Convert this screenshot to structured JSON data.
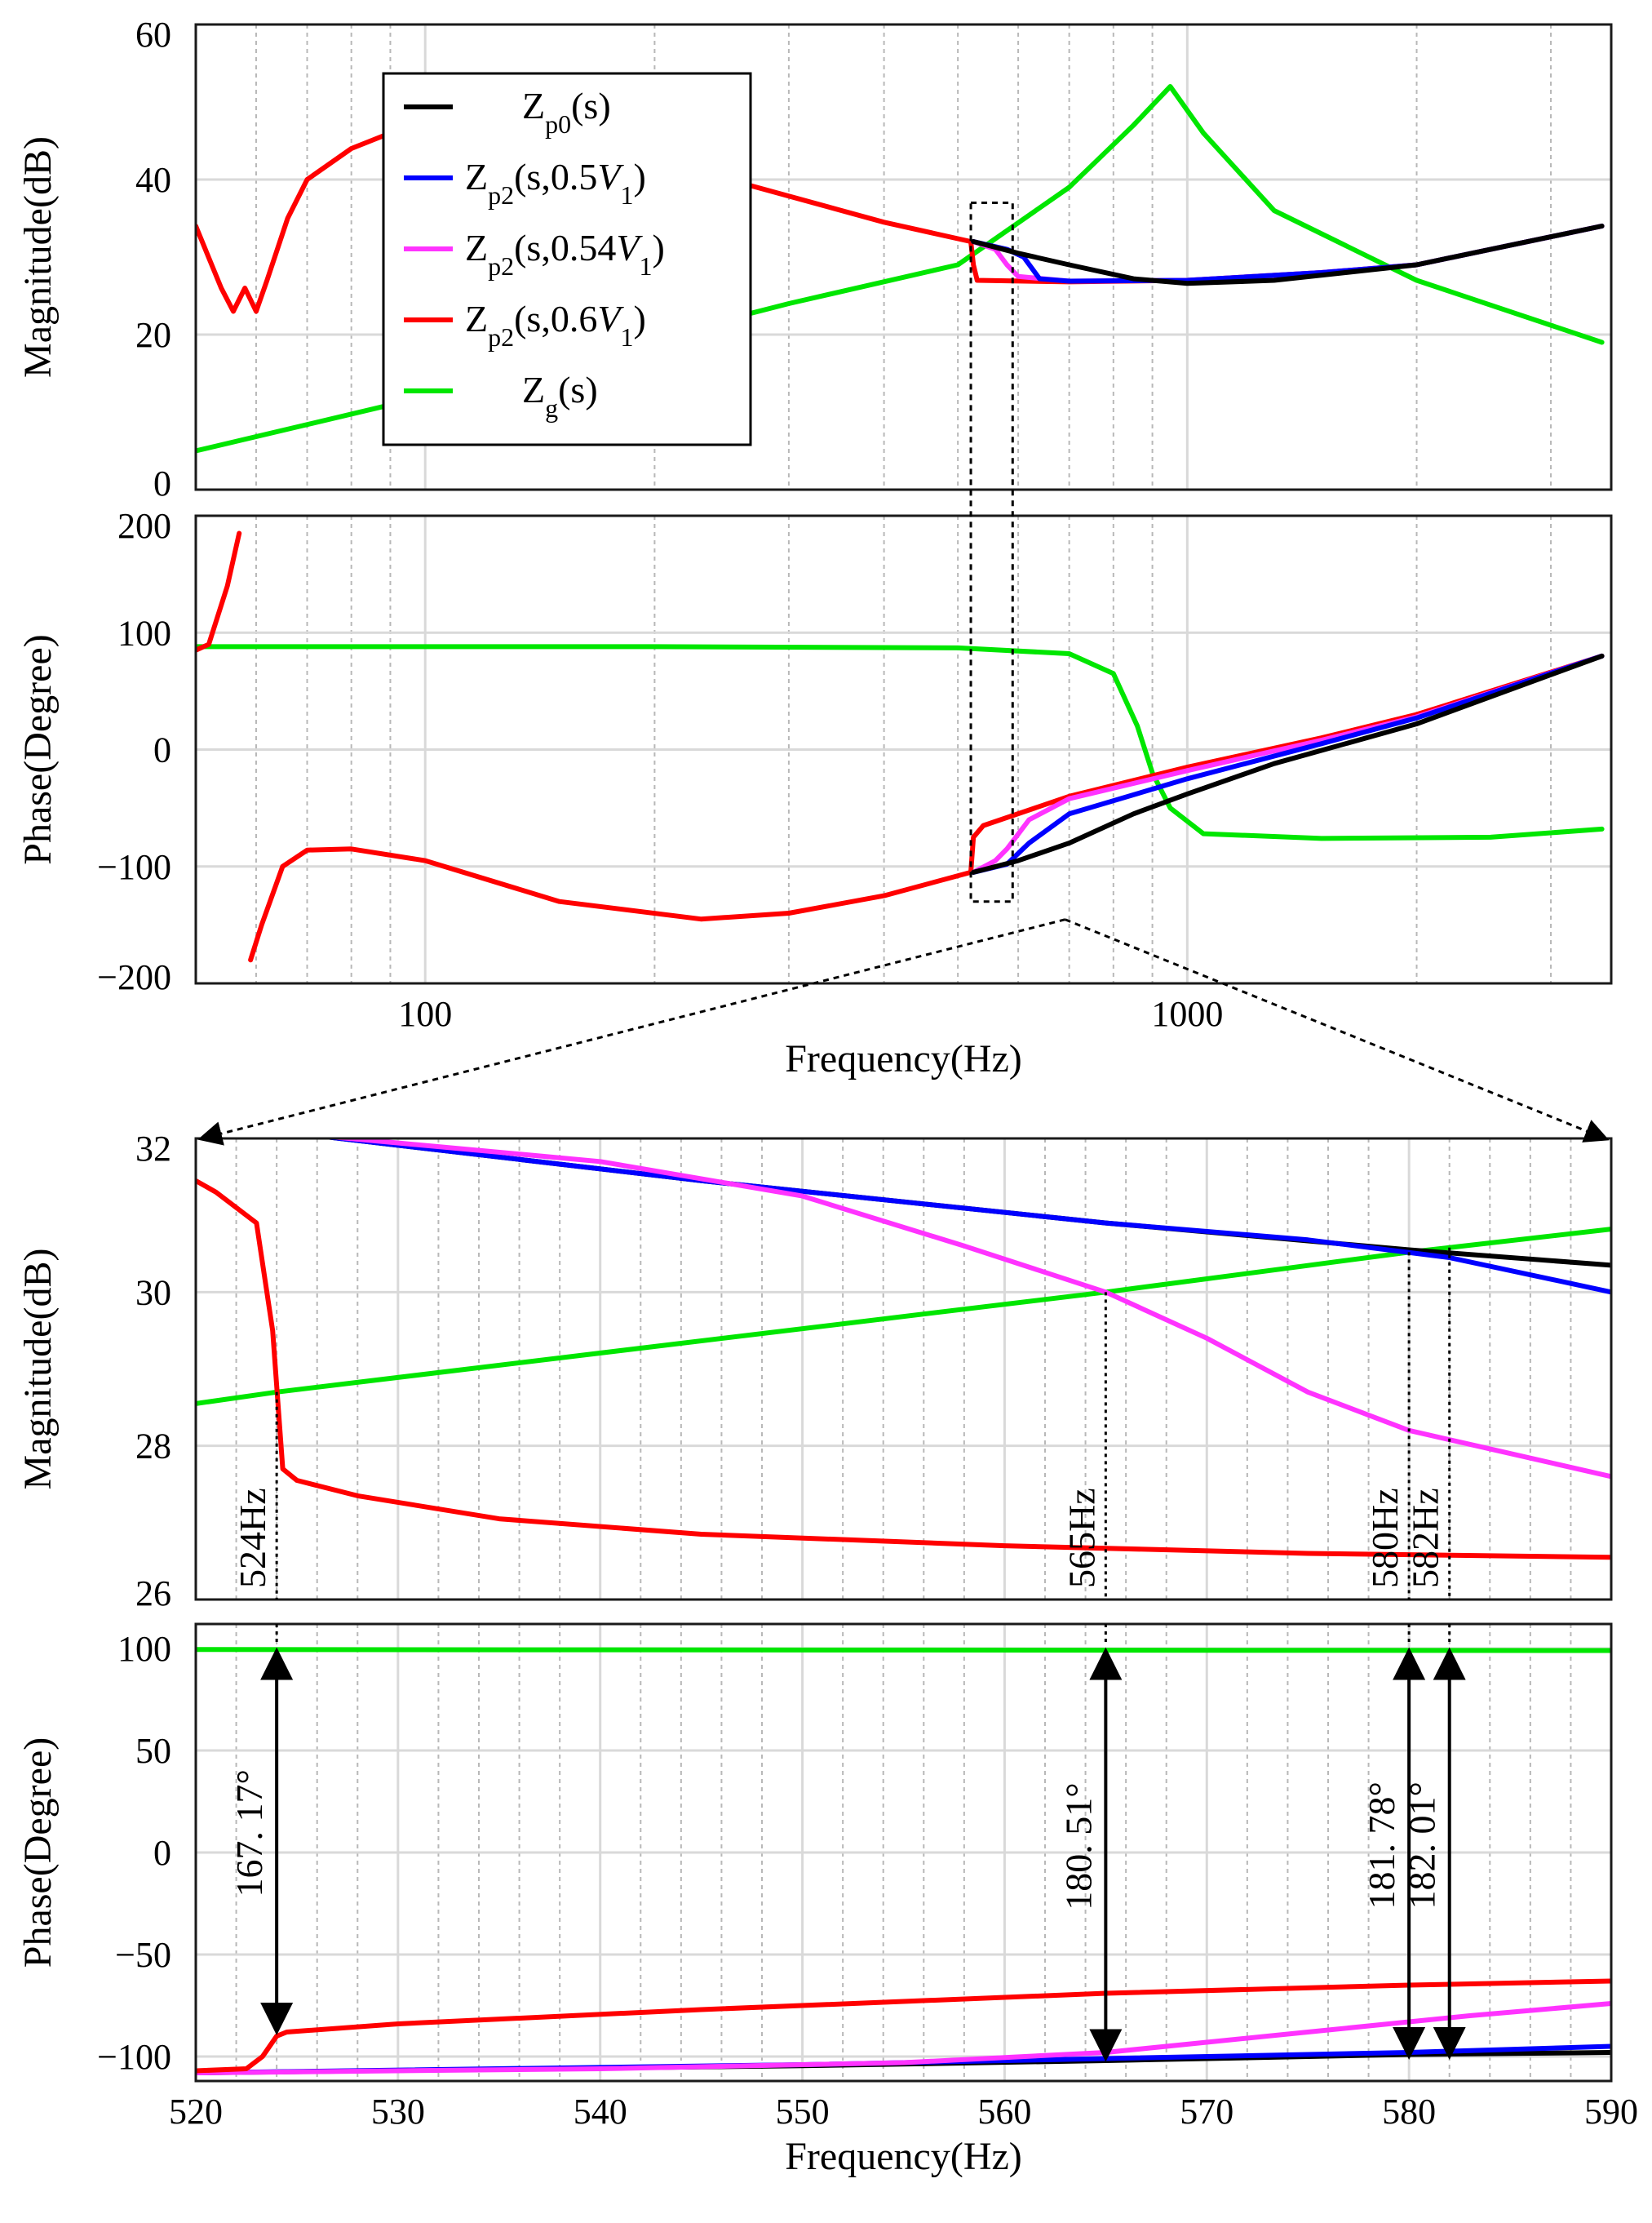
{
  "chart_data": [
    {
      "type": "line",
      "panel": "top-magnitude",
      "xscale": "log",
      "xlim": [
        50,
        3600
      ],
      "ylim": [
        0,
        60
      ],
      "yticks": [
        "0",
        "20",
        "40",
        "60"
      ],
      "ylabel": "Magnitude(dB)",
      "legend": {
        "position": "top-left",
        "entries": [
          {
            "main": "Z",
            "sub": "p0",
            "rest": "(s)",
            "color": "#000000"
          },
          {
            "main": "Z",
            "sub": "p2",
            "rest": "(s,0.5",
            "var": "V",
            "varsub": "1",
            "close": ")",
            "color": "#0000ff"
          },
          {
            "main": "Z",
            "sub": "p2",
            "rest": "(s,0.54",
            "var": "V",
            "varsub": "1",
            "close": ")",
            "color": "#ff33ff"
          },
          {
            "main": "Z",
            "sub": "p2",
            "rest": "(s,0.6",
            "var": "V",
            "varsub": "1",
            "close": ")",
            "color": "#ff0000"
          },
          {
            "main": "Z",
            "sub": "g",
            "rest": "(s)",
            "color": "#00e600"
          }
        ]
      },
      "series": [
        {
          "name": "Zg",
          "color": "#00e600",
          "points": [
            [
              50,
              5
            ],
            [
              100,
              12
            ],
            [
              300,
              24
            ],
            [
              500,
              29
            ],
            [
              700,
              39
            ],
            [
              850,
              47
            ],
            [
              950,
              52
            ],
            [
              1050,
              46
            ],
            [
              1300,
              36
            ],
            [
              2000,
              27
            ],
            [
              3500,
              19
            ]
          ]
        },
        {
          "name": "Zp2_0.6",
          "color": "#ff0000",
          "points": [
            [
              50,
              34
            ],
            [
              54,
              26
            ],
            [
              56,
              23
            ],
            [
              58,
              26
            ],
            [
              60,
              23
            ],
            [
              62,
              27
            ],
            [
              66,
              35
            ],
            [
              70,
              40
            ],
            [
              80,
              44
            ],
            [
              90,
              46
            ],
            [
              100,
              46
            ],
            [
              150,
              44
            ],
            [
              250,
              40
            ],
            [
              400,
              34.5
            ],
            [
              520,
              32
            ],
            [
              524,
              29
            ],
            [
              530,
              27
            ],
            [
              700,
              26.8
            ],
            [
              1000,
              27
            ],
            [
              1500,
              28
            ],
            [
              2000,
              29
            ],
            [
              3500,
              34
            ]
          ]
        },
        {
          "name": "Zp2_0.54",
          "color": "#ff33ff",
          "points": [
            [
              524,
              32
            ],
            [
              560,
              31
            ],
            [
              580,
              29
            ],
            [
              600,
              27.5
            ],
            [
              700,
              26.9
            ],
            [
              1000,
              27
            ],
            [
              1500,
              28
            ],
            [
              2000,
              29
            ],
            [
              3500,
              34
            ]
          ]
        },
        {
          "name": "Zp2_0.5",
          "color": "#0000ff",
          "points": [
            [
              524,
              32
            ],
            [
              580,
              31
            ],
            [
              610,
              30
            ],
            [
              640,
              27.2
            ],
            [
              700,
              26.9
            ],
            [
              1000,
              27
            ],
            [
              1500,
              28
            ],
            [
              2000,
              29
            ],
            [
              3500,
              34
            ]
          ]
        },
        {
          "name": "Zp0",
          "color": "#000000",
          "points": [
            [
              524,
              32
            ],
            [
              600,
              30.5
            ],
            [
              700,
              29
            ],
            [
              850,
              27.2
            ],
            [
              1000,
              26.6
            ],
            [
              1300,
              27
            ],
            [
              2000,
              29
            ],
            [
              3500,
              34
            ]
          ]
        }
      ]
    },
    {
      "type": "line",
      "panel": "top-phase",
      "xscale": "log",
      "xlim": [
        50,
        3600
      ],
      "ylim": [
        -200,
        200
      ],
      "yticks": [
        "−200",
        "−100",
        "0",
        "100",
        "200"
      ],
      "xticks": [
        "100",
        "1000"
      ],
      "xtick_values": [
        100,
        1000
      ],
      "ylabel": "Phase(Degree)",
      "xlabel": "Frequency(Hz)",
      "series": [
        {
          "name": "Zg",
          "color": "#00e600",
          "points": [
            [
              50,
              88
            ],
            [
              200,
              88
            ],
            [
              500,
              87
            ],
            [
              700,
              82
            ],
            [
              800,
              65
            ],
            [
              860,
              20
            ],
            [
              900,
              -20
            ],
            [
              950,
              -50
            ],
            [
              1050,
              -72
            ],
            [
              1500,
              -76
            ],
            [
              2500,
              -75
            ],
            [
              3500,
              -68
            ]
          ]
        },
        {
          "name": "Zp2_0.6_low",
          "color": "#ff0000",
          "points": [
            [
              50,
              85
            ],
            [
              52,
              90
            ],
            [
              55,
              140
            ],
            [
              57,
              185
            ]
          ]
        },
        {
          "name": "Zp2_0.6",
          "color": "#ff0000",
          "points": [
            [
              59,
              -180
            ],
            [
              61,
              -150
            ],
            [
              65,
              -100
            ],
            [
              70,
              -86
            ],
            [
              80,
              -85
            ],
            [
              100,
              -95
            ],
            [
              150,
              -130
            ],
            [
              230,
              -145
            ],
            [
              300,
              -140
            ],
            [
              400,
              -125
            ],
            [
              520,
              -105
            ],
            [
              524,
              -75
            ],
            [
              540,
              -65
            ],
            [
              700,
              -40
            ],
            [
              1000,
              -15
            ],
            [
              1500,
              10
            ],
            [
              2000,
              30
            ],
            [
              3500,
              80
            ]
          ]
        },
        {
          "name": "Zp2_0.54",
          "color": "#ff33ff",
          "points": [
            [
              524,
              -105
            ],
            [
              560,
              -95
            ],
            [
              580,
              -85
            ],
            [
              620,
              -60
            ],
            [
              700,
              -42
            ],
            [
              1000,
              -18
            ],
            [
              1500,
              8
            ],
            [
              2000,
              28
            ],
            [
              3500,
              80
            ]
          ]
        },
        {
          "name": "Zp2_0.5",
          "color": "#0000ff",
          "points": [
            [
              524,
              -105
            ],
            [
              580,
              -98
            ],
            [
              620,
              -80
            ],
            [
              700,
              -55
            ],
            [
              1000,
              -25
            ],
            [
              1500,
              5
            ],
            [
              2000,
              27
            ],
            [
              3500,
              80
            ]
          ]
        },
        {
          "name": "Zp0",
          "color": "#000000",
          "points": [
            [
              524,
              -105
            ],
            [
              600,
              -95
            ],
            [
              700,
              -80
            ],
            [
              850,
              -55
            ],
            [
              1000,
              -38
            ],
            [
              1300,
              -12
            ],
            [
              2000,
              22
            ],
            [
              3500,
              80
            ]
          ]
        }
      ]
    },
    {
      "type": "line",
      "panel": "zoom-magnitude",
      "xscale": "linear",
      "xlim": [
        520,
        590
      ],
      "ylim": [
        26,
        32
      ],
      "yticks": [
        "26",
        "28",
        "30",
        "32"
      ],
      "ylabel": "Magnitude(dB)",
      "series": [
        {
          "name": "Zg",
          "color": "#00e600",
          "points": [
            [
              520,
              28.55
            ],
            [
              524,
              28.7
            ],
            [
              565,
              30.0
            ],
            [
              580,
              30.52
            ],
            [
              590,
              30.82
            ]
          ]
        },
        {
          "name": "Zp0",
          "color": "#000000",
          "points": [
            [
              525.5,
              32.05
            ],
            [
              545,
              31.45
            ],
            [
              565,
              30.9
            ],
            [
              580,
              30.55
            ],
            [
              590,
              30.35
            ]
          ]
        },
        {
          "name": "Zp2_0.5",
          "color": "#0000ff",
          "points": [
            [
              525.5,
              32.05
            ],
            [
              545,
              31.45
            ],
            [
              565,
              30.9
            ],
            [
              575,
              30.68
            ],
            [
              582,
              30.45
            ],
            [
              590,
              30.0
            ]
          ]
        },
        {
          "name": "Zp2_0.54",
          "color": "#ff33ff",
          "points": [
            [
              525.5,
              32.05
            ],
            [
              540,
              31.7
            ],
            [
              550,
              31.25
            ],
            [
              558,
              30.6
            ],
            [
              565,
              30.0
            ],
            [
              570,
              29.4
            ],
            [
              575,
              28.7
            ],
            [
              580,
              28.2
            ],
            [
              585,
              27.9
            ],
            [
              590,
              27.6
            ]
          ]
        },
        {
          "name": "Zp2_0.6",
          "color": "#ff0000",
          "points": [
            [
              520,
              31.45
            ],
            [
              521,
              31.3
            ],
            [
              522,
              31.1
            ],
            [
              523,
              30.9
            ],
            [
              523.8,
              29.5
            ],
            [
              524.3,
              27.7
            ],
            [
              525,
              27.55
            ],
            [
              528,
              27.35
            ],
            [
              535,
              27.05
            ],
            [
              545,
              26.85
            ],
            [
              560,
              26.7
            ],
            [
              575,
              26.6
            ],
            [
              590,
              26.55
            ]
          ]
        }
      ],
      "annotations": [
        {
          "x": 524,
          "label": "524Hz"
        },
        {
          "x": 565,
          "label": "565Hz"
        },
        {
          "x": 580,
          "label": "580Hz"
        },
        {
          "x": 582,
          "label": "582Hz"
        }
      ]
    },
    {
      "type": "line",
      "panel": "zoom-phase",
      "xscale": "linear",
      "xlim": [
        520,
        590
      ],
      "ylim": [
        -112,
        112
      ],
      "yticks": [
        "−100",
        "−50",
        "0",
        "50",
        "100"
      ],
      "ytick_values": [
        -100,
        -50,
        0,
        50,
        100
      ],
      "xticks": [
        "520",
        "530",
        "540",
        "550",
        "560",
        "570",
        "580",
        "590"
      ],
      "xtick_values": [
        520,
        530,
        540,
        550,
        560,
        570,
        580,
        590
      ],
      "ylabel": "Phase(Degree)",
      "xlabel": "Frequency(Hz)",
      "series": [
        {
          "name": "Zg",
          "color": "#00e600",
          "points": [
            [
              520,
              99.5
            ],
            [
              590,
              99
            ]
          ]
        },
        {
          "name": "Zp0",
          "color": "#000000",
          "points": [
            [
              520,
              -108
            ],
            [
              550,
              -104.5
            ],
            [
              565,
              -102
            ],
            [
              580,
              -99
            ],
            [
              590,
              -98
            ]
          ]
        },
        {
          "name": "Zp2_0.5",
          "color": "#0000ff",
          "points": [
            [
              520,
              -108
            ],
            [
              550,
              -104
            ],
            [
              565,
              -101
            ],
            [
              580,
              -98
            ],
            [
              590,
              -95
            ]
          ]
        },
        {
          "name": "Zp2_0.54",
          "color": "#ff33ff",
          "points": [
            [
              520,
              -108
            ],
            [
              540,
              -106
            ],
            [
              555,
              -103
            ],
            [
              565,
              -98
            ],
            [
              575,
              -88
            ],
            [
              583,
              -80
            ],
            [
              590,
              -74
            ]
          ]
        },
        {
          "name": "Zp2_0.6",
          "color": "#ff0000",
          "points": [
            [
              520,
              -107
            ],
            [
              522.5,
              -106
            ],
            [
              523.3,
              -100
            ],
            [
              524,
              -90
            ],
            [
              524.5,
              -88
            ],
            [
              530,
              -84
            ],
            [
              545,
              -77
            ],
            [
              565,
              -69
            ],
            [
              580,
              -65
            ],
            [
              590,
              -63
            ]
          ]
        }
      ],
      "annotations": [
        {
          "x": 524,
          "label": "167. 17°",
          "y_top": 99,
          "y_bottom": -88
        },
        {
          "x": 565,
          "label": "180. 51°",
          "y_top": 99,
          "y_bottom": -101
        },
        {
          "x": 580,
          "label": "181. 78°",
          "y_top": 99,
          "y_bottom": -100
        },
        {
          "x": 582,
          "label": "182. 01°",
          "y_top": 99,
          "y_bottom": -100
        }
      ]
    }
  ],
  "colors": {
    "Zg": "#00e600",
    "Zp0": "#000000",
    "Zp2_0.5": "#0000ff",
    "Zp2_0.54": "#ff33ff",
    "Zp2_0.6": "#ff0000"
  }
}
